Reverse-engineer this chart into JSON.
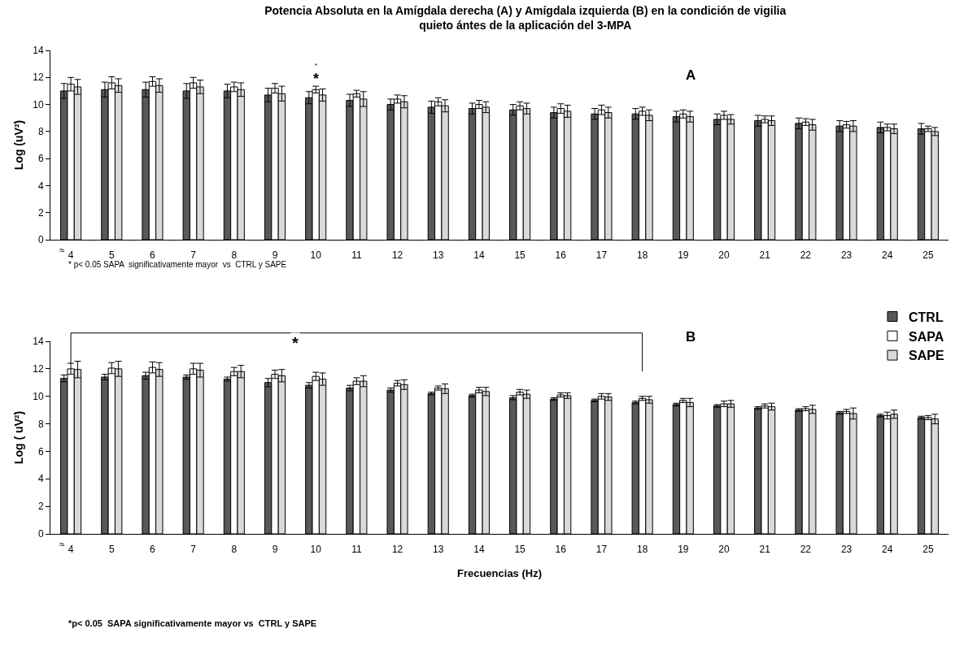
{
  "chart_data": [
    {
      "type": "bar",
      "title": "Potencia Absoluta en la Amígdala derecha (A) y Amígdala izquierda (B) en la condición de vigilia quieto ántes de la aplicación del 3-MPA",
      "ylabel": "Log (uV²)",
      "categories": [
        "4",
        "5",
        "6",
        "7",
        "8",
        "9",
        "10",
        "11",
        "12",
        "13",
        "14",
        "15",
        "16",
        "17",
        "18",
        "19",
        "20",
        "21",
        "22",
        "23",
        "24",
        "25"
      ],
      "series": [
        {
          "color": "#595959",
          "values": [
            11.0,
            11.1,
            11.1,
            11.0,
            11.0,
            10.7,
            10.5,
            10.3,
            10.0,
            9.8,
            9.7,
            9.6,
            9.4,
            9.3,
            9.3,
            9.1,
            8.9,
            8.8,
            8.6,
            8.4,
            8.3,
            8.2
          ],
          "errors": [
            0.55,
            0.55,
            0.55,
            0.55,
            0.5,
            0.5,
            0.45,
            0.45,
            0.4,
            0.45,
            0.4,
            0.4,
            0.4,
            0.4,
            0.4,
            0.4,
            0.4,
            0.4,
            0.4,
            0.4,
            0.4,
            0.4
          ]
        },
        {
          "color": "#ffffff",
          "values": [
            11.5,
            11.6,
            11.7,
            11.6,
            11.3,
            11.2,
            11.1,
            10.8,
            10.4,
            10.2,
            10.0,
            9.9,
            9.7,
            9.6,
            9.5,
            9.3,
            9.2,
            8.9,
            8.7,
            8.5,
            8.3,
            8.2
          ],
          "errors": [
            0.5,
            0.45,
            0.35,
            0.4,
            0.35,
            0.35,
            0.25,
            0.25,
            0.3,
            0.3,
            0.3,
            0.3,
            0.35,
            0.35,
            0.3,
            0.3,
            0.3,
            0.25,
            0.25,
            0.25,
            0.25,
            0.2
          ]
        },
        {
          "color": "#d9d9d9",
          "values": [
            11.3,
            11.4,
            11.4,
            11.3,
            11.1,
            10.8,
            10.7,
            10.4,
            10.2,
            9.9,
            9.8,
            9.7,
            9.5,
            9.4,
            9.2,
            9.1,
            8.9,
            8.8,
            8.5,
            8.4,
            8.2,
            8.0
          ],
          "errors": [
            0.55,
            0.5,
            0.5,
            0.5,
            0.5,
            0.55,
            0.45,
            0.55,
            0.45,
            0.45,
            0.4,
            0.4,
            0.45,
            0.4,
            0.4,
            0.4,
            0.35,
            0.35,
            0.4,
            0.4,
            0.35,
            0.3
          ]
        }
      ],
      "ylim": [
        0,
        14
      ],
      "yticks": [
        0,
        2,
        4,
        6,
        8,
        10,
        12,
        14
      ],
      "grid": false,
      "legend": false,
      "annotations": [
        "A",
        "≈",
        "* p< 0.05 SAPA  significativamente mayor  vs  CTRL y SAPE",
        "*",
        "*"
      ]
    },
    {
      "type": "bar",
      "xlabel": "Frecuencias (Hz)",
      "ylabel": "Log ( uV²)",
      "categories": [
        "4",
        "5",
        "6",
        "7",
        "8",
        "9",
        "10",
        "11",
        "12",
        "13",
        "14",
        "15",
        "16",
        "17",
        "18",
        "19",
        "20",
        "21",
        "22",
        "23",
        "24",
        "25"
      ],
      "series": [
        {
          "name": "CTRL",
          "color": "#595959",
          "values": [
            11.3,
            11.4,
            11.5,
            11.4,
            11.25,
            11.0,
            10.8,
            10.6,
            10.45,
            10.2,
            10.05,
            9.9,
            9.8,
            9.7,
            9.55,
            9.4,
            9.3,
            9.15,
            9.0,
            8.8,
            8.6,
            8.45
          ],
          "errors": [
            0.25,
            0.2,
            0.25,
            0.15,
            0.15,
            0.3,
            0.2,
            0.2,
            0.15,
            0.1,
            0.1,
            0.15,
            0.1,
            0.1,
            0.1,
            0.1,
            0.1,
            0.1,
            0.1,
            0.1,
            0.1,
            0.1
          ]
        },
        {
          "name": "SAPA",
          "color": "#ffffff",
          "values": [
            12.0,
            12.05,
            12.1,
            12.0,
            11.8,
            11.6,
            11.45,
            11.1,
            10.95,
            10.6,
            10.45,
            10.3,
            10.1,
            10.0,
            9.85,
            9.7,
            9.45,
            9.3,
            9.1,
            8.9,
            8.6,
            8.45
          ],
          "errors": [
            0.4,
            0.4,
            0.4,
            0.4,
            0.3,
            0.3,
            0.3,
            0.25,
            0.2,
            0.15,
            0.2,
            0.2,
            0.15,
            0.2,
            0.15,
            0.15,
            0.2,
            0.15,
            0.15,
            0.15,
            0.25,
            0.15
          ]
        },
        {
          "name": "SAPE",
          "color": "#d9d9d9",
          "values": [
            11.95,
            12.0,
            11.95,
            11.9,
            11.8,
            11.5,
            11.25,
            11.1,
            10.85,
            10.55,
            10.35,
            10.15,
            10.05,
            9.95,
            9.75,
            9.55,
            9.45,
            9.25,
            9.05,
            8.75,
            8.7,
            8.35
          ],
          "errors": [
            0.6,
            0.55,
            0.5,
            0.5,
            0.45,
            0.45,
            0.45,
            0.4,
            0.35,
            0.35,
            0.3,
            0.3,
            0.2,
            0.25,
            0.25,
            0.3,
            0.25,
            0.25,
            0.3,
            0.4,
            0.3,
            0.35
          ]
        }
      ],
      "ylim": [
        0,
        14
      ],
      "yticks": [
        0,
        2,
        4,
        6,
        8,
        10,
        12,
        14
      ],
      "grid": false,
      "legend": "top right",
      "annotations": [
        "B",
        "≈",
        "*p< 0.05  SAPA significativamente mayor vs  CTRL y SAPE",
        "*"
      ]
    }
  ]
}
